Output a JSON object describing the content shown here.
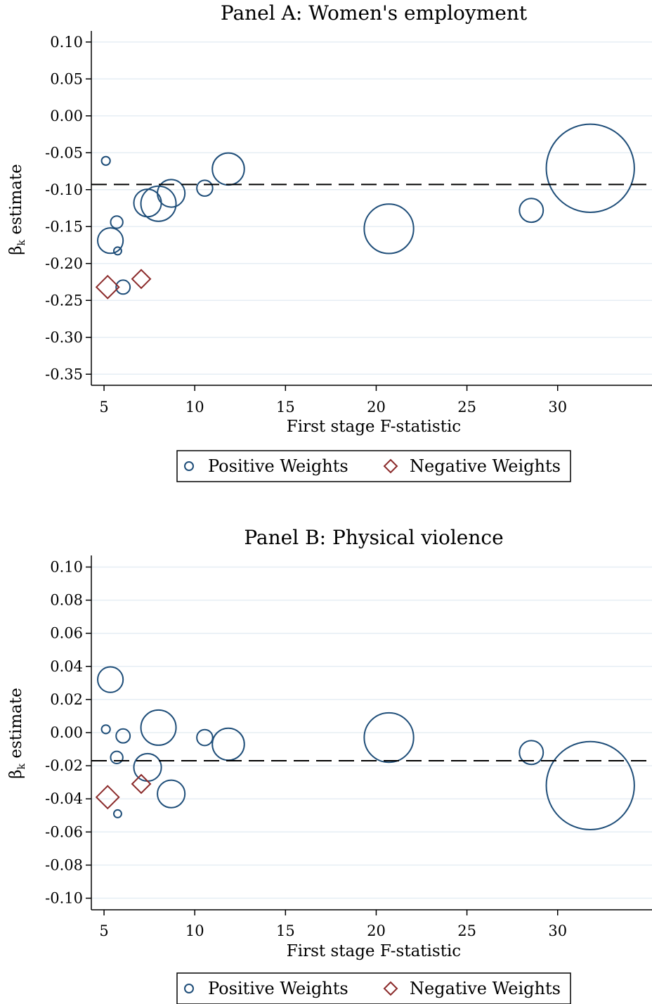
{
  "colors": {
    "positive": "#1f4e79",
    "negative": "#8b2a2a",
    "grid": "#e6eef4",
    "refline": "#000000"
  },
  "legend": {
    "positive_label": "Positive Weights",
    "negative_label": "Negative Weights"
  },
  "chart_data": [
    {
      "type": "scatter",
      "title": "Panel A: Women's employment",
      "xlabel": "First stage F-statistic",
      "ylabel": "β_k estimate",
      "ylabel_main": "β",
      "ylabel_sub": "k",
      "ylabel_rest": " estimate",
      "xlim": [
        4.3,
        35.2
      ],
      "ylim": [
        -0.365,
        0.115
      ],
      "xticks": [
        5,
        10,
        15,
        20,
        25,
        30
      ],
      "xtick_labels": [
        "5",
        "10",
        "15",
        "20",
        "25",
        "30"
      ],
      "yticks": [
        0.1,
        0.05,
        0.0,
        -0.05,
        -0.1,
        -0.15,
        -0.2,
        -0.25,
        -0.3,
        -0.35
      ],
      "ytick_labels": [
        "0.10",
        "0.05",
        "0.00",
        "-0.05",
        "-0.10",
        "-0.15",
        "-0.20",
        "-0.25",
        "-0.30",
        "-0.35"
      ],
      "grid": true,
      "reference_line": -0.093,
      "legend_position": "bottom",
      "series": [
        {
          "name": "Positive Weights",
          "marker": "circle",
          "points": [
            {
              "x": 5.1,
              "y": -0.061,
              "w": 0.01
            },
            {
              "x": 5.35,
              "y": -0.169,
              "w": 0.45
            },
            {
              "x": 5.7,
              "y": -0.144,
              "w": 0.05
            },
            {
              "x": 5.75,
              "y": -0.183,
              "w": 0.005
            },
            {
              "x": 6.05,
              "y": -0.232,
              "w": 0.08
            },
            {
              "x": 7.4,
              "y": -0.118,
              "w": 0.55
            },
            {
              "x": 8.0,
              "y": -0.119,
              "w": 1.0
            },
            {
              "x": 8.7,
              "y": -0.105,
              "w": 0.55
            },
            {
              "x": 10.55,
              "y": -0.098,
              "w": 0.12
            },
            {
              "x": 11.85,
              "y": -0.072,
              "w": 0.8
            },
            {
              "x": 20.7,
              "y": -0.153,
              "w": 2.2
            },
            {
              "x": 28.55,
              "y": -0.128,
              "w": 0.38
            },
            {
              "x": 31.8,
              "y": -0.071,
              "w": 7.8
            }
          ]
        },
        {
          "name": "Negative Weights",
          "marker": "diamond",
          "points": [
            {
              "x": 5.2,
              "y": -0.232,
              "w": 0.5
            },
            {
              "x": 7.05,
              "y": -0.221,
              "w": 0.28
            }
          ]
        }
      ]
    },
    {
      "type": "scatter",
      "title": "Panel B: Physical violence",
      "xlabel": "First stage F-statistic",
      "ylabel": "β_k estimate",
      "ylabel_main": "β",
      "ylabel_sub": "k",
      "ylabel_rest": " estimate",
      "xlim": [
        4.3,
        35.2
      ],
      "ylim": [
        -0.107,
        0.107
      ],
      "xticks": [
        5,
        10,
        15,
        20,
        25,
        30
      ],
      "xtick_labels": [
        "5",
        "10",
        "15",
        "20",
        "25",
        "30"
      ],
      "yticks": [
        0.1,
        0.08,
        0.06,
        0.04,
        0.02,
        0.0,
        -0.02,
        -0.04,
        -0.06,
        -0.08,
        -0.1
      ],
      "ytick_labels": [
        "0.10",
        "0.08",
        "0.06",
        "0.04",
        "0.02",
        "0.00",
        "-0.02",
        "-0.04",
        "-0.06",
        "-0.08",
        "-0.10"
      ],
      "grid": true,
      "reference_line": -0.017,
      "legend_position": "bottom",
      "series": [
        {
          "name": "Positive Weights",
          "marker": "circle",
          "points": [
            {
              "x": 5.1,
              "y": 0.002,
              "w": 0.01
            },
            {
              "x": 5.35,
              "y": 0.032,
              "w": 0.45
            },
            {
              "x": 5.7,
              "y": -0.015,
              "w": 0.05
            },
            {
              "x": 5.75,
              "y": -0.049,
              "w": 0.005
            },
            {
              "x": 6.05,
              "y": -0.002,
              "w": 0.08
            },
            {
              "x": 7.4,
              "y": -0.021,
              "w": 0.55
            },
            {
              "x": 8.0,
              "y": 0.003,
              "w": 1.0
            },
            {
              "x": 8.7,
              "y": -0.037,
              "w": 0.55
            },
            {
              "x": 10.55,
              "y": -0.003,
              "w": 0.12
            },
            {
              "x": 11.85,
              "y": -0.007,
              "w": 0.8
            },
            {
              "x": 20.7,
              "y": -0.003,
              "w": 2.2
            },
            {
              "x": 28.55,
              "y": -0.012,
              "w": 0.38
            },
            {
              "x": 31.8,
              "y": -0.032,
              "w": 7.8
            }
          ]
        },
        {
          "name": "Negative Weights",
          "marker": "diamond",
          "points": [
            {
              "x": 5.2,
              "y": -0.039,
              "w": 0.5
            },
            {
              "x": 7.05,
              "y": -0.031,
              "w": 0.28
            }
          ]
        }
      ]
    }
  ]
}
